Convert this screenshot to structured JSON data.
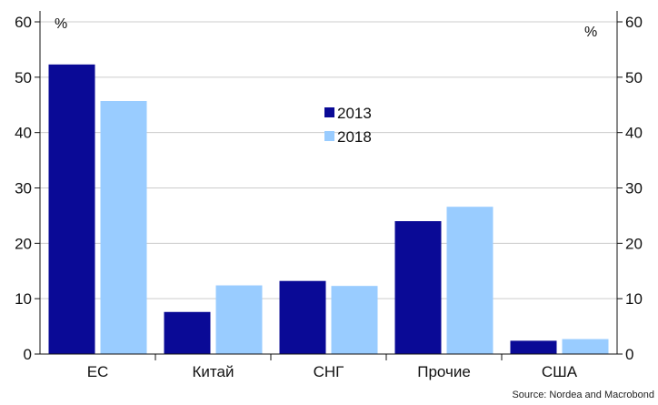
{
  "chart_data": {
    "type": "bar",
    "categories": [
      "ЕС",
      "Китай",
      "СНГ",
      "Прочие",
      "США"
    ],
    "series": [
      {
        "name": "2013",
        "color": "#0a0a96",
        "values": [
          52.3,
          7.6,
          13.2,
          24.0,
          2.4
        ]
      },
      {
        "name": "2018",
        "color": "#99ccff",
        "values": [
          45.7,
          12.4,
          12.3,
          26.6,
          2.7
        ]
      }
    ],
    "ylim": [
      0,
      60
    ],
    "yticks": [
      0,
      10,
      20,
      30,
      40,
      50,
      60
    ],
    "y_unit_left": "%",
    "y_unit_right": "%",
    "grid": true,
    "legend_position": "center",
    "source": "Source: Nordea and Macrobond"
  }
}
